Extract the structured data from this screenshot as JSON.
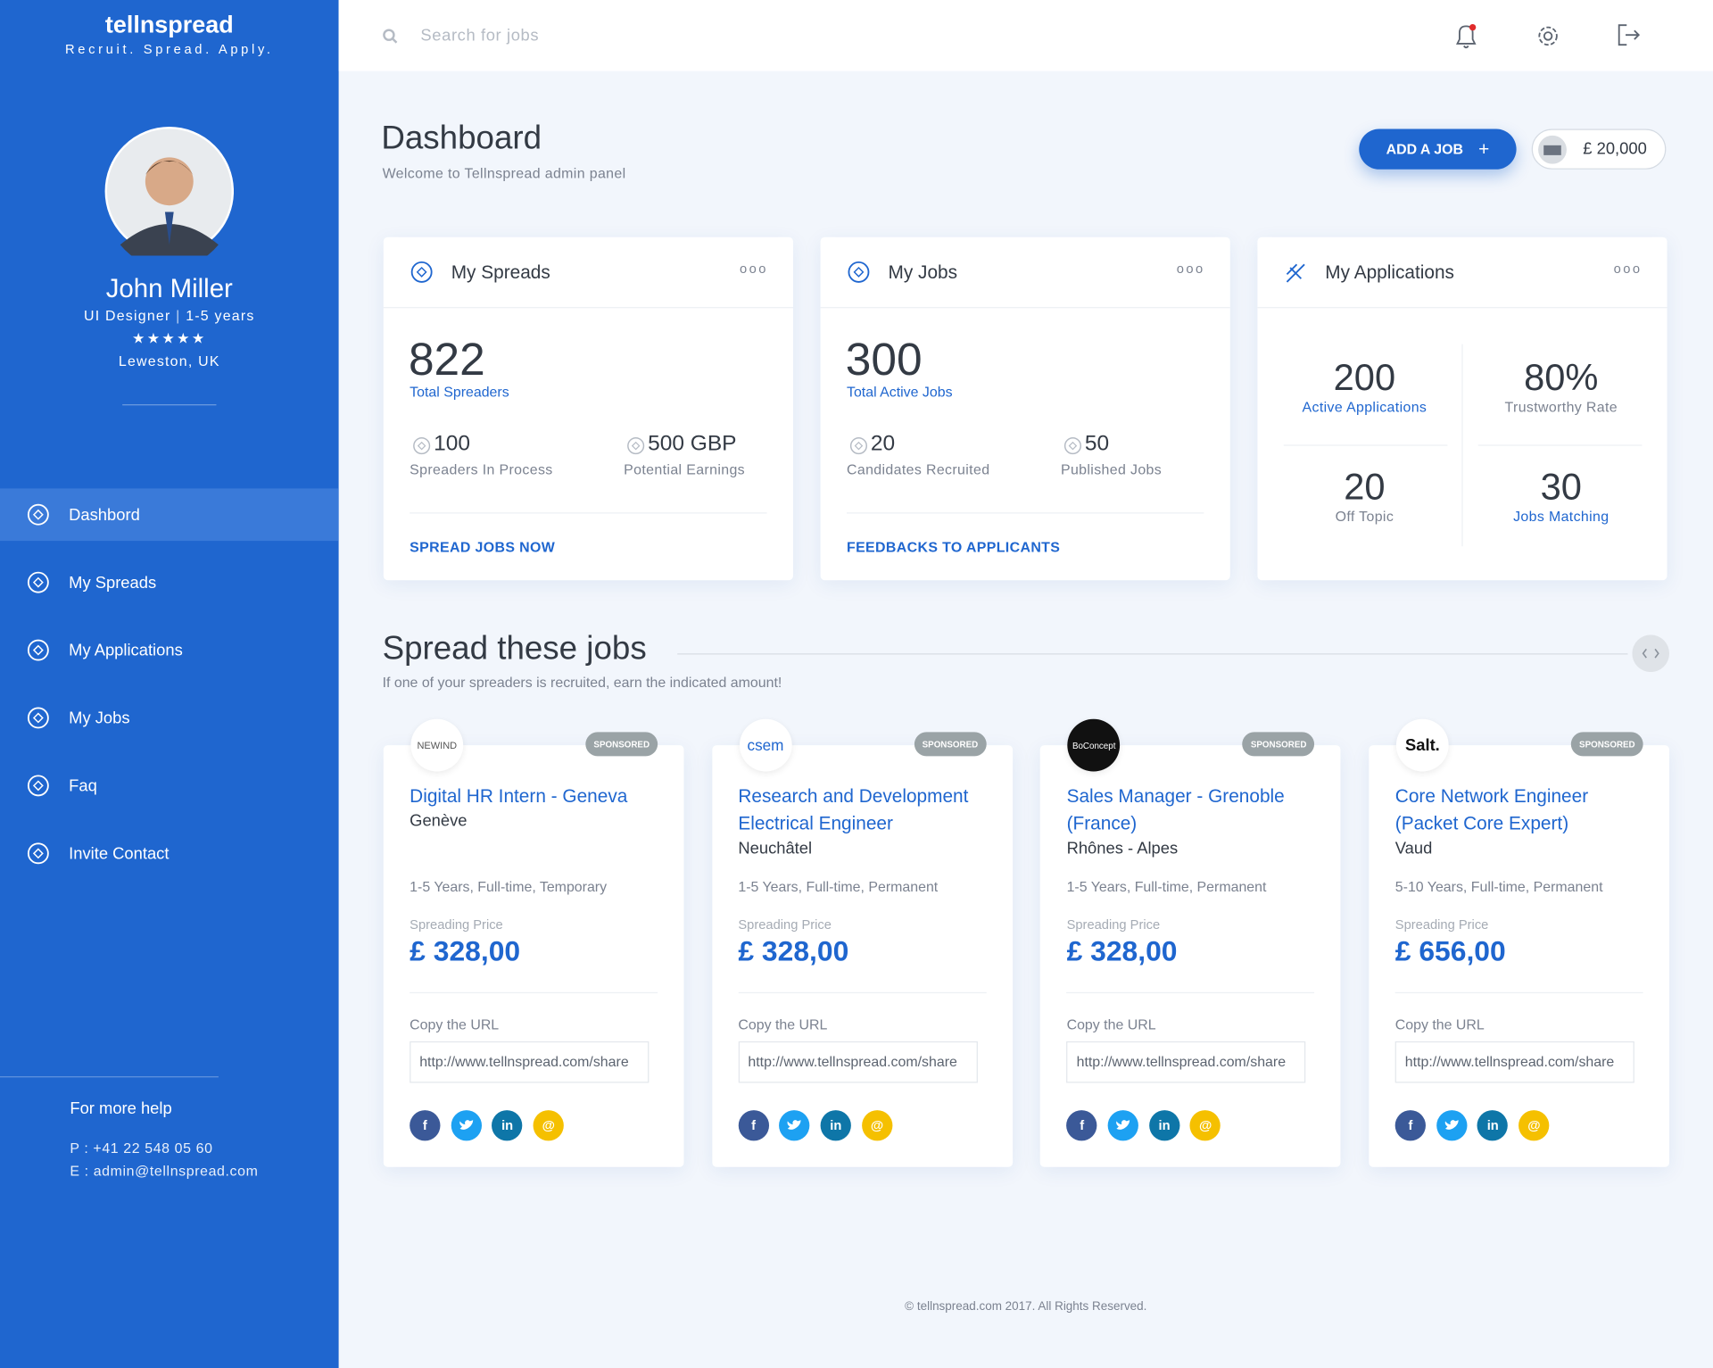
{
  "brand": {
    "logo": "tellnspread",
    "tagline": "Recruit. Spread. Apply."
  },
  "profile": {
    "name": "John Miller",
    "role": "UI Designer",
    "experience": "1-5 years",
    "stars": "★★★★★",
    "location": "Leweston, UK"
  },
  "nav": [
    "Dashbord",
    "My Spreads",
    "My Applications",
    "My Jobs",
    "Faq",
    "Invite Contact"
  ],
  "help": {
    "title": "For more help",
    "phone": "P : +41 22 548 05 60",
    "email": "E : admin@tellnspread.com"
  },
  "search_placeholder": "Search for jobs",
  "header": {
    "title": "Dashboard",
    "subtitle": "Welcome to Tellnspread admin panel",
    "add_button": "ADD A JOB",
    "balance": "£ 20,000"
  },
  "stats": [
    {
      "title": "My Spreads",
      "main": "822",
      "main_label": "Total Spreaders",
      "items": [
        {
          "value": "100",
          "label": "Spreaders In Process"
        },
        {
          "value": "500 GBP",
          "label": "Potential Earnings"
        }
      ],
      "link": "SPREAD JOBS NOW"
    },
    {
      "title": "My Jobs",
      "main": "300",
      "main_label": "Total Active Jobs",
      "items": [
        {
          "value": "20",
          "label": "Candidates Recruited"
        },
        {
          "value": "50",
          "label": "Published Jobs"
        }
      ],
      "link": "FEEDBACKS TO APPLICANTS"
    }
  ],
  "applications": {
    "title": "My Applications",
    "cells": [
      {
        "value": "200",
        "label": "Active Applications"
      },
      {
        "value": "80%",
        "label": "Trustworthy Rate"
      },
      {
        "value": "20",
        "label": "Off Topic"
      },
      {
        "value": "30",
        "label": "Jobs Matching"
      }
    ]
  },
  "jobs_section": {
    "title": "Spread these jobs",
    "subtitle": "If one of your spreaders is recruited, earn the indicated amount!"
  },
  "jobs": [
    {
      "company": "NEWIND",
      "badge": "SPONSORED",
      "title": "Digital HR Intern - Geneva",
      "location": "Genève",
      "details": "1-5 Years, Full-time, Temporary",
      "price_label": "Spreading Price",
      "price": "£ 328,00",
      "url_label": "Copy the URL",
      "url": "http://www.tellnspread.com/share"
    },
    {
      "company": "csem",
      "badge": "SPONSORED",
      "title": "Research and Development Electrical Engineer",
      "location": "Neuchâtel",
      "details": "1-5 Years, Full-time, Permanent",
      "price_label": "Spreading Price",
      "price": "£ 328,00",
      "url_label": "Copy the URL",
      "url": "http://www.tellnspread.com/share"
    },
    {
      "company": "BoConcept",
      "badge": "SPONSORED",
      "title": "Sales Manager - Grenoble (France)",
      "location": "Rhônes - Alpes",
      "details": "1-5 Years, Full-time, Permanent",
      "price_label": "Spreading Price",
      "price": "£ 328,00",
      "url_label": "Copy the URL",
      "url": "http://www.tellnspread.com/share"
    },
    {
      "company": "Salt.",
      "badge": "SPONSORED",
      "title": "Core Network Engineer (Packet Core Expert)",
      "location": "Vaud",
      "details": "5-10 Years, Full-time, Permanent",
      "price_label": "Spreading Price",
      "price": "£ 656,00",
      "url_label": "Copy the URL",
      "url": "http://www.tellnspread.com/share"
    }
  ],
  "social": {
    "facebook": "f",
    "linkedin": "in",
    "email": "@"
  },
  "footer": "© tellnspread.com 2017. All Rights Reserved."
}
